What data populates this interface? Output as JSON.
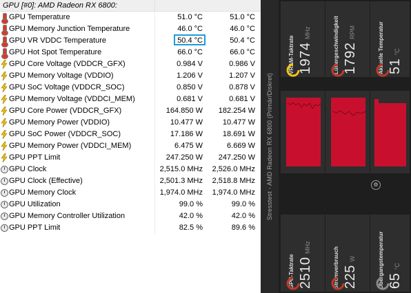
{
  "table": {
    "group": "GPU [#0]: AMD Radeon RX 6800:",
    "highlight_row": 2,
    "rows": [
      {
        "icon": "thermometer-icon",
        "label": "GPU Temperature",
        "current": "51.0 °C",
        "max": "51.0 °C"
      },
      {
        "icon": "thermometer-icon",
        "label": "GPU Memory Junction Temperature",
        "current": "46.0 °C",
        "max": "46.0 °C"
      },
      {
        "icon": "thermometer-icon",
        "label": "GPU VR VDDC Temperature",
        "current": "50.4 °C",
        "max": "50.4 °C"
      },
      {
        "icon": "thermometer-icon",
        "label": "GPU Hot Spot Temperature",
        "current": "66.0 °C",
        "max": "66.0 °C"
      },
      {
        "icon": "lightning-icon",
        "label": "GPU Core Voltage (VDDCR_GFX)",
        "current": "0.984 V",
        "max": "0.986 V"
      },
      {
        "icon": "lightning-icon",
        "label": "GPU Memory Voltage (VDDIO)",
        "current": "1.206 V",
        "max": "1.207 V"
      },
      {
        "icon": "lightning-icon",
        "label": "GPU SoC Voltage (VDDCR_SOC)",
        "current": "0.850 V",
        "max": "0.878 V"
      },
      {
        "icon": "lightning-icon",
        "label": "GPU Memory Voltage (VDDCI_MEM)",
        "current": "0.681 V",
        "max": "0.681 V"
      },
      {
        "icon": "lightning-icon",
        "label": "GPU Core Power (VDDCR_GFX)",
        "current": "164.850 W",
        "max": "182.254 W"
      },
      {
        "icon": "lightning-icon",
        "label": "GPU Memory Power (VDDIO)",
        "current": "10.477 W",
        "max": "10.477 W"
      },
      {
        "icon": "lightning-icon",
        "label": "GPU SoC Power (VDDCR_SOC)",
        "current": "17.186 W",
        "max": "18.691 W"
      },
      {
        "icon": "lightning-icon",
        "label": "GPU Memory Power (VDDCI_MEM)",
        "current": "6.475 W",
        "max": "6.669 W"
      },
      {
        "icon": "lightning-icon",
        "label": "GPU PPT Limit",
        "current": "247.250 W",
        "max": "247.250 W"
      },
      {
        "icon": "clock-icon",
        "label": "GPU Clock",
        "current": "2,515.0 MHz",
        "max": "2,526.0 MHz"
      },
      {
        "icon": "clock-icon",
        "label": "GPU Clock (Effective)",
        "current": "2,501.3 MHz",
        "max": "2,518.8 MHz"
      },
      {
        "icon": "clock-icon",
        "label": "GPU Memory Clock",
        "current": "1,974.0 MHz",
        "max": "1,974.0 MHz"
      },
      {
        "icon": "clock-icon",
        "label": "GPU Utilization",
        "current": "99.0 %",
        "max": "99.0 %"
      },
      {
        "icon": "clock-icon",
        "label": "GPU Memory Controller Utilization",
        "current": "42.0 %",
        "max": "42.0 %"
      },
      {
        "icon": "clock-icon",
        "label": "GPU PPT Limit",
        "current": "82.5 %",
        "max": "89.6 %"
      }
    ]
  },
  "strip": {
    "text": "Stresstest - AMD Radeon RX 6800 (Primär/Diskret)"
  },
  "gauges_top": [
    {
      "name": "vram-clock-gauge",
      "label": "VRAM-Taktrate",
      "value": "1974",
      "unit": "MHz",
      "ring_color": "#f0c419",
      "fill": 0.45
    },
    {
      "name": "fan-speed-gauge",
      "label": "Lüftergeschwindigkeit",
      "value": "1792",
      "unit": "RPM",
      "ring_color": "#c0392b",
      "fill": 0.3
    },
    {
      "name": "current-temp-gauge",
      "label": "Aktuelle Temperatur",
      "value": "51",
      "unit": "°C",
      "ring_color": "#c0392b",
      "fill": 0.3
    }
  ],
  "gauges_bottom": [
    {
      "name": "gpu-clock-gauge",
      "label": "GPU-Taktrate",
      "value": "2510",
      "unit": "MHz",
      "ring_color": "#c0392b",
      "fill": 0.3
    },
    {
      "name": "power-draw-gauge",
      "label": "Stromverbrauch",
      "value": "225",
      "unit": "W",
      "ring_color": "#c0392b",
      "fill": 0.3
    },
    {
      "name": "junction-temp-gauge",
      "label": "Übergangstemperatur",
      "value": "65",
      "unit": "°C",
      "ring_color": "#c0392b",
      "fill": 0.3
    }
  ],
  "colors": {
    "graph_red": "#c8102e",
    "highlight": "#1d9bd7"
  }
}
